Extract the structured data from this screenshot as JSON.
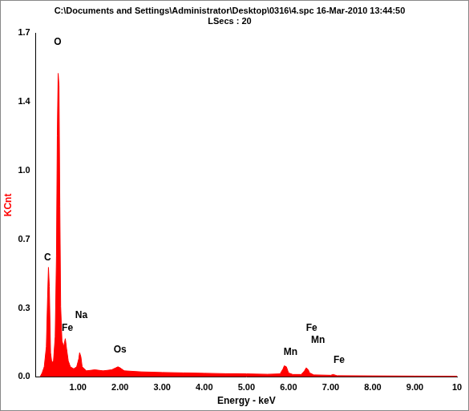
{
  "chart_data": {
    "type": "line",
    "title": "C:\\Documents and Settings\\Administrator\\Desktop\\0316\\4.spc 16-Mar-2010 13:44:50",
    "subtitle": "LSecs : 20",
    "x_label": "Energy - keV",
    "y_label": "KCnt",
    "color": "#ff0000",
    "grid": false,
    "xlim": [
      0,
      10
    ],
    "xticks": [
      {
        "value": 1,
        "label": "1.00"
      },
      {
        "value": 2,
        "label": "2.00"
      },
      {
        "value": 3,
        "label": "3.00"
      },
      {
        "value": 4,
        "label": "4.00"
      },
      {
        "value": 5,
        "label": "5.00"
      },
      {
        "value": 6,
        "label": "6.00"
      },
      {
        "value": 7,
        "label": "7.00"
      },
      {
        "value": 8,
        "label": "8.00"
      },
      {
        "value": 9,
        "label": "9.00"
      },
      10
    ],
    "ylim": [
      0,
      1.71
    ],
    "yticks": [
      {
        "value": 0,
        "label": "0.0"
      },
      {
        "value": 0.342,
        "label": "0.3"
      },
      {
        "value": 0.684,
        "label": "0.7"
      },
      {
        "value": 1.026,
        "label": "1.0"
      },
      {
        "value": 1.368,
        "label": "1.4"
      },
      {
        "value": 1.71,
        "label": "1.7"
      }
    ],
    "x": [
      0.1,
      0.15,
      0.2,
      0.25,
      0.28,
      0.3,
      0.32,
      0.35,
      0.38,
      0.42,
      0.46,
      0.49,
      0.51,
      0.53,
      0.55,
      0.57,
      0.59,
      0.62,
      0.66,
      0.7,
      0.73,
      0.77,
      0.82,
      0.9,
      0.97,
      1.02,
      1.04,
      1.07,
      1.1,
      1.2,
      1.4,
      1.6,
      1.8,
      1.9,
      1.95,
      2.0,
      2.1,
      2.5,
      3.0,
      3.5,
      4.0,
      4.5,
      5.0,
      5.5,
      5.8,
      5.87,
      5.9,
      5.95,
      6.0,
      6.1,
      6.3,
      6.38,
      6.42,
      6.47,
      6.5,
      6.6,
      7.0,
      7.06,
      7.15,
      8.0,
      9.0,
      10.0
    ],
    "values": [
      0.0,
      0.02,
      0.05,
      0.15,
      0.4,
      0.545,
      0.45,
      0.12,
      0.07,
      0.08,
      0.2,
      0.6,
      1.2,
      1.51,
      1.45,
      0.85,
      0.35,
      0.18,
      0.15,
      0.19,
      0.14,
      0.08,
      0.05,
      0.04,
      0.05,
      0.09,
      0.12,
      0.1,
      0.05,
      0.03,
      0.035,
      0.03,
      0.035,
      0.045,
      0.05,
      0.045,
      0.03,
      0.025,
      0.022,
      0.02,
      0.018,
      0.016,
      0.015,
      0.013,
      0.015,
      0.04,
      0.055,
      0.05,
      0.02,
      0.012,
      0.012,
      0.03,
      0.045,
      0.035,
      0.02,
      0.01,
      0.008,
      0.012,
      0.006,
      0.005,
      0.004,
      0.003
    ],
    "annotations": [
      {
        "text": "C",
        "x": 0.28,
        "y": 0.57
      },
      {
        "text": "O",
        "x": 0.52,
        "y": 1.64
      },
      {
        "text": "Fe",
        "x": 0.75,
        "y": 0.22
      },
      {
        "text": "Na",
        "x": 1.08,
        "y": 0.28
      },
      {
        "text": "Os",
        "x": 2.0,
        "y": 0.11
      },
      {
        "text": "Mn",
        "x": 6.05,
        "y": 0.1
      },
      {
        "text": "Fe",
        "x": 6.55,
        "y": 0.22
      },
      {
        "text": "Mn",
        "x": 6.7,
        "y": 0.16
      },
      {
        "text": "Fe",
        "x": 7.2,
        "y": 0.06
      }
    ]
  }
}
